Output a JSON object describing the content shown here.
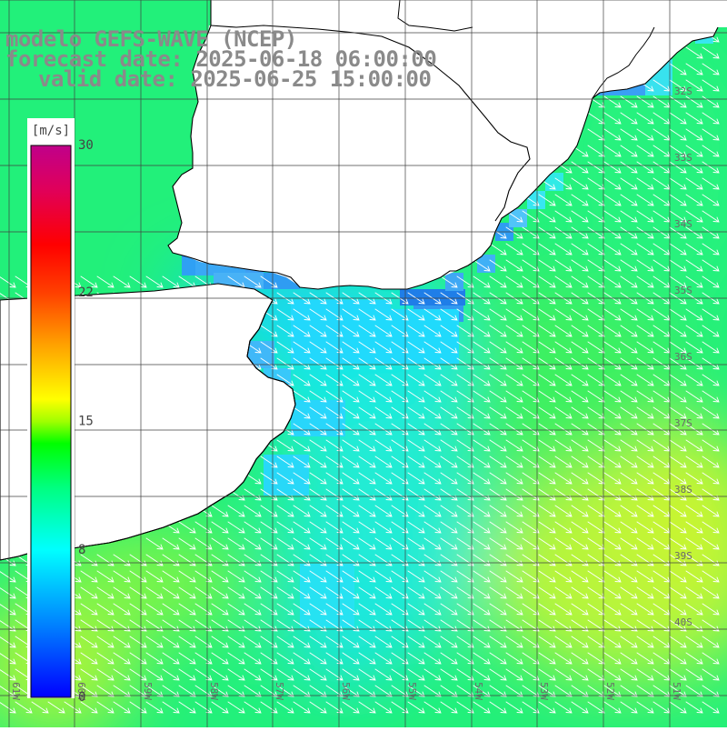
{
  "title": {
    "model": "modelo GEFS-WAVE (NCEP)",
    "forecast": "forecast date: 2025-06-18 06:00:00",
    "valid": "valid date: 2025-06-25 15:00:00"
  },
  "colorbar": {
    "unit": "[m/s]",
    "ticks": [
      {
        "value": 30,
        "label": "30"
      },
      {
        "value": 22,
        "label": "22"
      },
      {
        "value": 15,
        "label": "15"
      },
      {
        "value": 8,
        "label": "8"
      },
      {
        "value": 0,
        "label": "0"
      }
    ],
    "min": 0,
    "max": 30,
    "colors": [
      "#0000ff",
      "#0080ff",
      "#00ffff",
      "#00ff80",
      "#00ff00",
      "#80ff00",
      "#ffff00",
      "#ff8000",
      "#ff0000",
      "#e0006a",
      "#c0008a"
    ]
  },
  "map": {
    "region": "South Atlantic - Uruguay / Rio de la Plata",
    "lon_labels": [
      "61W",
      "60W",
      "59W",
      "58W",
      "57W",
      "56W",
      "55W",
      "54W",
      "53W",
      "52W",
      "51W"
    ],
    "lat_labels": [
      "32S",
      "33S",
      "34S",
      "35S",
      "36S",
      "37S",
      "38S",
      "39S",
      "40S"
    ],
    "land_color": "#ffffff",
    "coast_color": "#000000",
    "grid_color": "#404040",
    "arrow_color": "#ffffff",
    "wind_direction": "from northwest toward southeast"
  }
}
